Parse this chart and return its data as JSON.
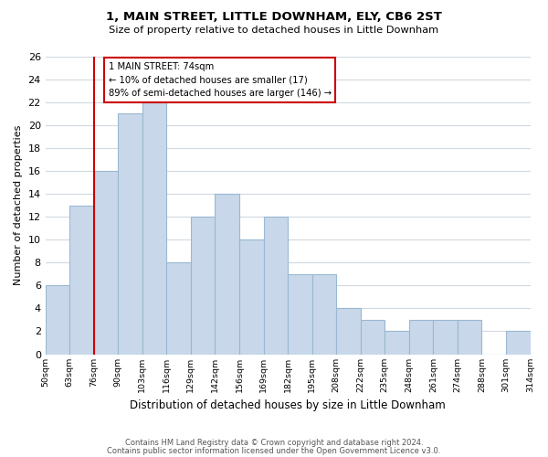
{
  "title": "1, MAIN STREET, LITTLE DOWNHAM, ELY, CB6 2ST",
  "subtitle": "Size of property relative to detached houses in Little Downham",
  "xlabel": "Distribution of detached houses by size in Little Downham",
  "ylabel": "Number of detached properties",
  "bar_color": "#c8d8ea",
  "bar_edge_color": "#9ab8d0",
  "bin_labels": [
    "50sqm",
    "63sqm",
    "76sqm",
    "90sqm",
    "103sqm",
    "116sqm",
    "129sqm",
    "142sqm",
    "156sqm",
    "169sqm",
    "182sqm",
    "195sqm",
    "208sqm",
    "222sqm",
    "235sqm",
    "248sqm",
    "261sqm",
    "274sqm",
    "288sqm",
    "301sqm",
    "314sqm"
  ],
  "values": [
    6,
    13,
    16,
    21,
    22,
    8,
    12,
    14,
    10,
    12,
    7,
    7,
    4,
    3,
    2,
    3,
    3,
    3,
    0,
    2
  ],
  "ylim": [
    0,
    26
  ],
  "yticks": [
    0,
    2,
    4,
    6,
    8,
    10,
    12,
    14,
    16,
    18,
    20,
    22,
    24,
    26
  ],
  "property_line_bin_index": 2,
  "property_label": "1 MAIN STREET: 74sqm",
  "annotation_line1": "← 10% of detached houses are smaller (17)",
  "annotation_line2": "89% of semi-detached houses are larger (146) →",
  "annotation_box_color": "#ffffff",
  "annotation_box_edge": "#cc0000",
  "vline_color": "#cc0000",
  "footer1": "Contains HM Land Registry data © Crown copyright and database right 2024.",
  "footer2": "Contains public sector information licensed under the Open Government Licence v3.0.",
  "bg_color": "#ffffff",
  "grid_color": "#d0d8e0"
}
